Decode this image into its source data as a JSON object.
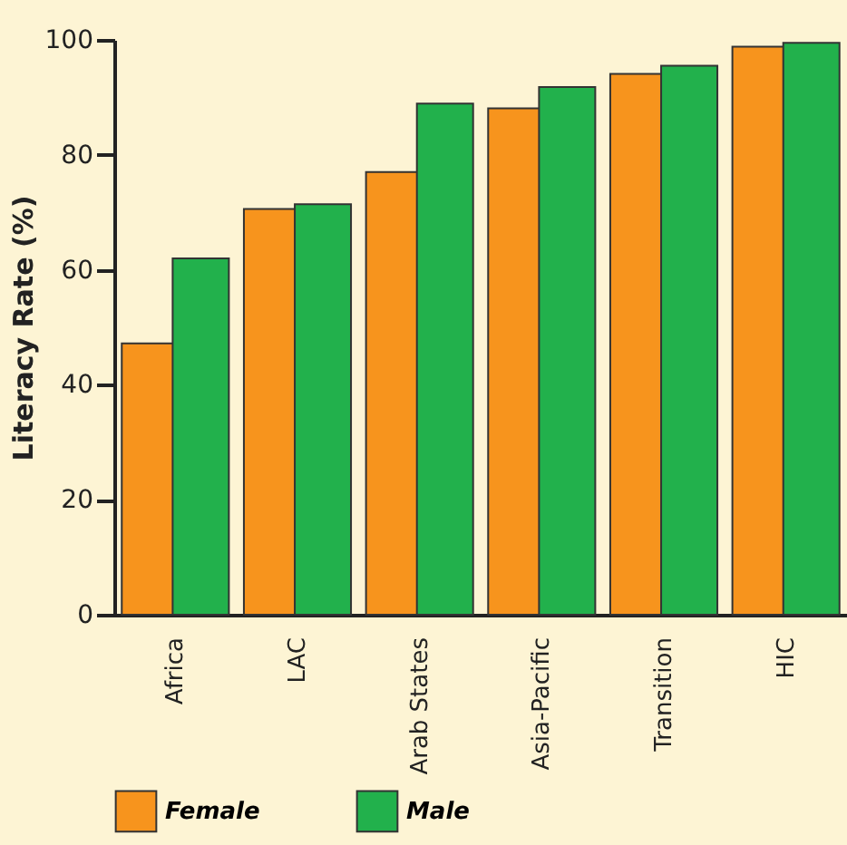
{
  "chart_data": {
    "type": "bar",
    "ylabel": "Literacy Rate (%)",
    "categories": [
      "Africa",
      "LAC",
      "Arab States",
      "Asia-Pacific",
      "Transition",
      "HIC"
    ],
    "series": [
      {
        "name": "Female",
        "color": "#f7941d",
        "values": [
          47.2,
          70.6,
          77.0,
          88.1,
          94.1,
          98.8
        ]
      },
      {
        "name": "Male",
        "color": "#22b14c",
        "values": [
          62.0,
          71.4,
          88.9,
          91.8,
          95.5,
          99.5
        ]
      }
    ],
    "ylim": [
      0,
      100
    ],
    "yticks": [
      0,
      20,
      40,
      60,
      80,
      100
    ],
    "grid": false,
    "legend": "bottom"
  }
}
